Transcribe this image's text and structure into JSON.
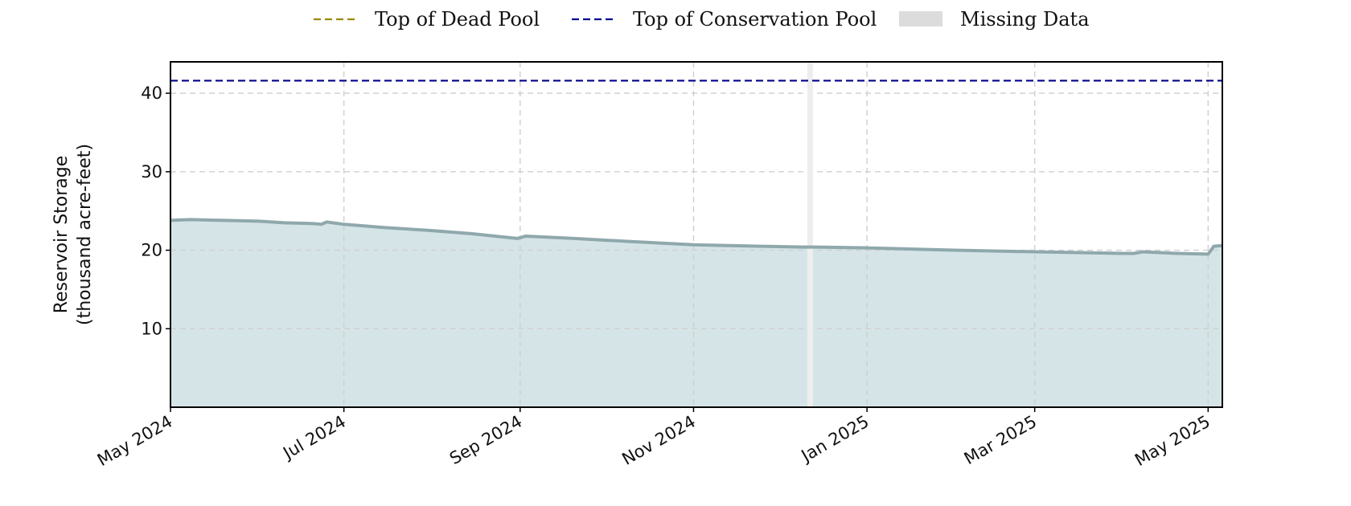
{
  "chart_data": {
    "type": "area",
    "title": "",
    "xlabel": "",
    "ylabel_lines": [
      "Reservoir Storage",
      "(thousand acre-feet)"
    ],
    "ylim": [
      0,
      44
    ],
    "xlim": [
      "2024-05-01",
      "2025-05-06"
    ],
    "yticks": [
      10,
      20,
      30,
      40
    ],
    "xticks": [
      {
        "date": "2024-05-01",
        "label": "May 2024"
      },
      {
        "date": "2024-07-01",
        "label": "Jul 2024"
      },
      {
        "date": "2024-09-01",
        "label": "Sep 2024"
      },
      {
        "date": "2024-11-01",
        "label": "Nov 2024"
      },
      {
        "date": "2025-01-01",
        "label": "Jan 2025"
      },
      {
        "date": "2025-03-01",
        "label": "Mar 2025"
      },
      {
        "date": "2025-05-01",
        "label": "May 2025"
      }
    ],
    "grid": true,
    "legend_position": "top-center",
    "legend": [
      {
        "label": "Top of Dead Pool",
        "style": "dashed",
        "color": "#9a8a00"
      },
      {
        "label": "Top of Conservation Pool",
        "style": "dashed",
        "color": "#00008b"
      },
      {
        "label": "Missing Data",
        "style": "patch",
        "color": "#dcdcdc"
      }
    ],
    "reference_lines": [
      {
        "name": "Top of Conservation Pool",
        "y": 41.6,
        "color": "#00008b"
      }
    ],
    "missing_ranges": [
      {
        "start": "2024-12-11",
        "end": "2024-12-13"
      }
    ],
    "series": [
      {
        "color": "#8fa8ac",
        "fill": "#d5e5e7",
        "points": [
          {
            "x": "2024-05-01",
            "y": 23.8
          },
          {
            "x": "2024-05-08",
            "y": 23.9
          },
          {
            "x": "2024-05-20",
            "y": 23.8
          },
          {
            "x": "2024-06-01",
            "y": 23.7
          },
          {
            "x": "2024-06-10",
            "y": 23.5
          },
          {
            "x": "2024-06-20",
            "y": 23.4
          },
          {
            "x": "2024-06-23",
            "y": 23.3
          },
          {
            "x": "2024-06-25",
            "y": 23.6
          },
          {
            "x": "2024-07-01",
            "y": 23.3
          },
          {
            "x": "2024-07-15",
            "y": 22.9
          },
          {
            "x": "2024-08-01",
            "y": 22.5
          },
          {
            "x": "2024-08-15",
            "y": 22.1
          },
          {
            "x": "2024-08-31",
            "y": 21.5
          },
          {
            "x": "2024-09-03",
            "y": 21.8
          },
          {
            "x": "2024-09-20",
            "y": 21.5
          },
          {
            "x": "2024-10-10",
            "y": 21.1
          },
          {
            "x": "2024-11-01",
            "y": 20.7
          },
          {
            "x": "2024-11-25",
            "y": 20.5
          },
          {
            "x": "2024-12-10",
            "y": 20.4
          },
          {
            "x": "2024-12-14",
            "y": 20.4
          },
          {
            "x": "2025-01-01",
            "y": 20.3
          },
          {
            "x": "2025-02-01",
            "y": 20.0
          },
          {
            "x": "2025-03-01",
            "y": 19.8
          },
          {
            "x": "2025-04-01",
            "y": 19.6
          },
          {
            "x": "2025-04-05",
            "y": 19.6
          },
          {
            "x": "2025-04-08",
            "y": 19.8
          },
          {
            "x": "2025-04-20",
            "y": 19.6
          },
          {
            "x": "2025-05-01",
            "y": 19.5
          },
          {
            "x": "2025-05-03",
            "y": 20.5
          },
          {
            "x": "2025-05-06",
            "y": 20.6
          }
        ]
      }
    ]
  }
}
